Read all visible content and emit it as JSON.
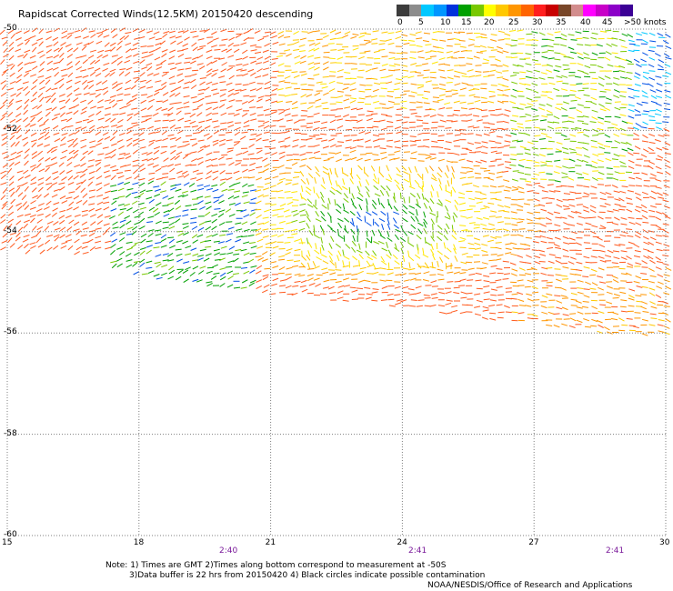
{
  "title": "Rapidscat Corrected Winds(12.5KM) 20150420 descending",
  "colorbar": {
    "swatches": [
      "#3c3c3c",
      "#8c8c8c",
      "#00c8ff",
      "#0096ff",
      "#0032dc",
      "#00a000",
      "#78c800",
      "#ffff00",
      "#ffc800",
      "#ff9600",
      "#ff6400",
      "#ff1e1e",
      "#c80000",
      "#784628",
      "#d28c8c",
      "#ff00ff",
      "#c800c8",
      "#8c00c8",
      "#3c0096"
    ],
    "labels": [
      "0",
      "5",
      "10",
      "15",
      "20",
      "25",
      "30",
      "35",
      "40",
      "45",
      ">50 knots"
    ]
  },
  "axes": {
    "lon_ticks": [
      "15",
      "18",
      "21",
      "24",
      "27",
      "30"
    ],
    "lat_ticks": [
      "-50",
      "-52",
      "-54",
      "-56",
      "-58",
      "-60"
    ],
    "lon_range": [
      15,
      30
    ],
    "lat_range": [
      -60,
      -50
    ],
    "grid": true
  },
  "pass_times": [
    "2:40",
    "2:41",
    "2:41"
  ],
  "notes": {
    "line1": "Note: 1) Times are GMT 2)Times along bottom correspond to measurement at -50S",
    "line2": "3)Data buffer is 22 hrs from 20150420 4) Black circles indicate possible contamination",
    "credit": "NOAA/NESDIS/Office of Research and Applications"
  },
  "colors": {
    "grid": "#7f7f7f",
    "time_text": "#7a1a9a"
  }
}
